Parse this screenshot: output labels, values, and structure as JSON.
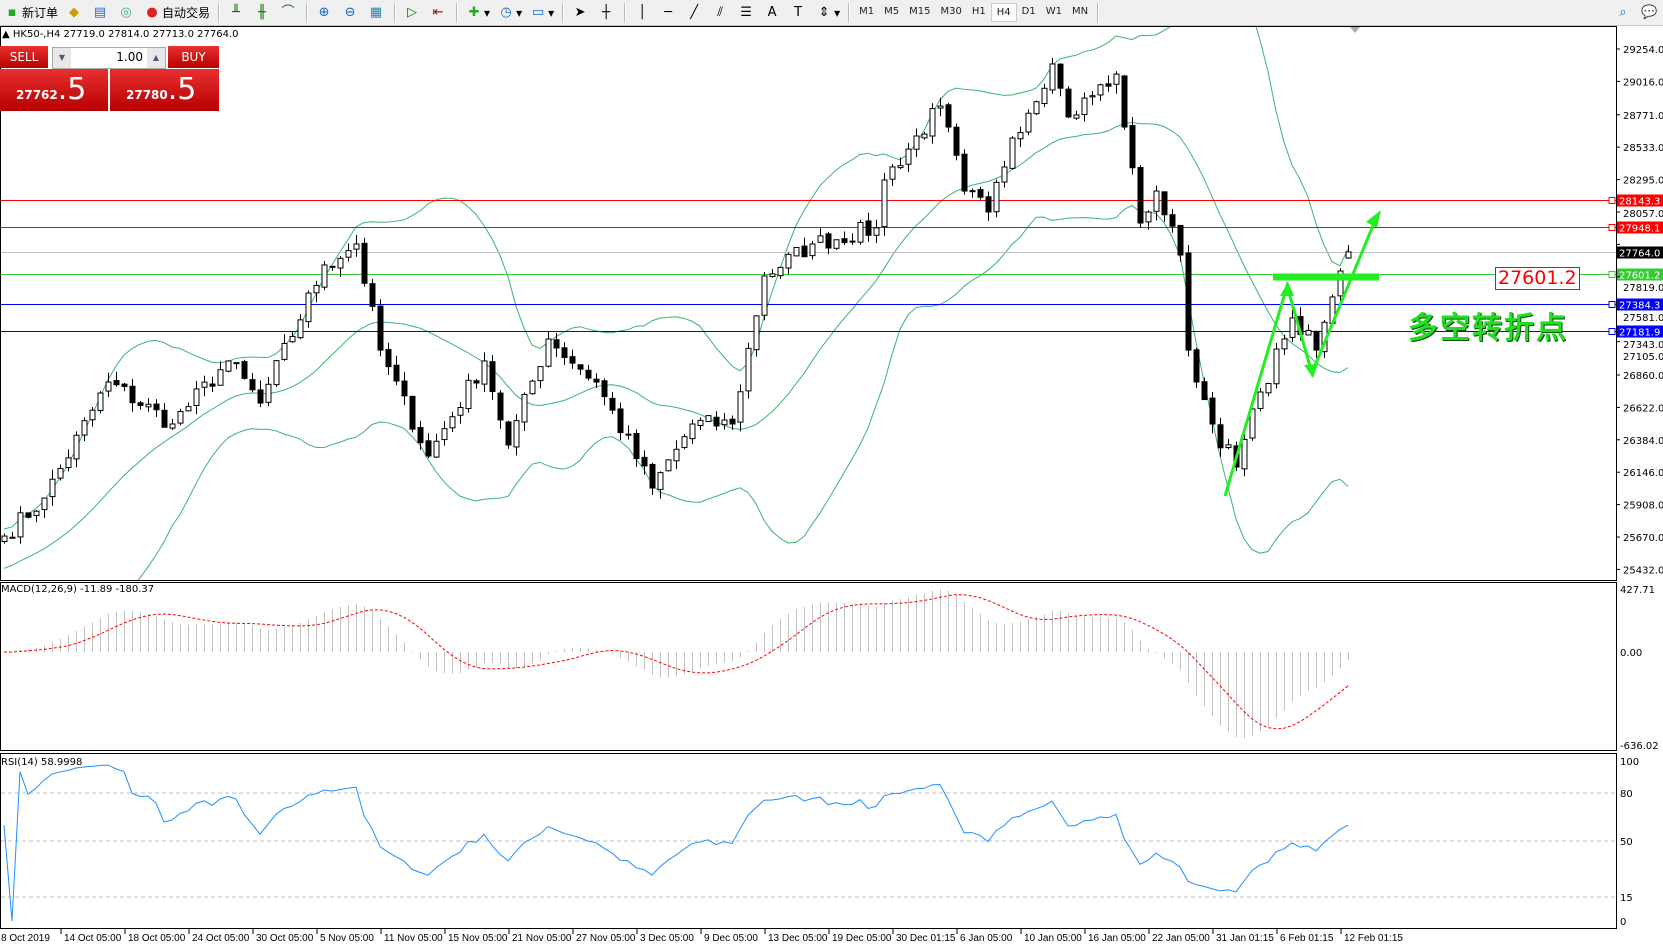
{
  "toolbar": {
    "new_order": "新订单",
    "auto_trading": "自动交易",
    "timeframes": [
      "M1",
      "M5",
      "M15",
      "M30",
      "H1",
      "H4",
      "D1",
      "W1",
      "MN"
    ],
    "active_timeframe": "H4"
  },
  "chart": {
    "symbol_info": "HK50-,H4  27719.0 27814.0 27713.0 27764.0",
    "last_bar": {
      "open": 27719.0,
      "high": 27814.0,
      "low": 27713.0,
      "close": 27764.0
    }
  },
  "trade_panel": {
    "sell_label": "SELL",
    "buy_label": "BUY",
    "lot": "1.00",
    "sell_price_main": "27762",
    "sell_price_frac": ".5",
    "buy_price_main": "27780",
    "buy_price_frac": ".5"
  },
  "price_axis": {
    "ticks": [
      "29254.0",
      "29016.0",
      "28771.0",
      "28533.0",
      "28295.0",
      "28057.0",
      "27819.0",
      "27581.0",
      "27343.0",
      "27105.0",
      "26860.0",
      "26622.0",
      "26384.0",
      "26146.0",
      "25908.0",
      "25670.0",
      "25432.0"
    ]
  },
  "hlines": [
    {
      "value": "28143.3",
      "color": "#ff0000"
    },
    {
      "value": "27948.1",
      "color": "#ff0000"
    },
    {
      "value": "27764.0",
      "color": "#000000",
      "line": "#c0c0c0"
    },
    {
      "value": "27601.2",
      "color": "#33cc33"
    },
    {
      "value": "27384.3",
      "color": "#0000ff"
    },
    {
      "value": "27181.9",
      "color": "#0000ff"
    }
  ],
  "annotations": {
    "level_label": "27601.2",
    "turning_point_text": "多空转折点",
    "arrow_color": "#22ee22"
  },
  "price_path": [
    {
      "bar": 0,
      "close": 25677
    },
    {
      "bar": 5,
      "close": 25956
    },
    {
      "bar": 13,
      "close": 26808
    },
    {
      "bar": 21,
      "close": 26500
    },
    {
      "bar": 28,
      "close": 26963
    },
    {
      "bar": 32,
      "close": 26654
    },
    {
      "bar": 40,
      "close": 27668
    },
    {
      "bar": 44,
      "close": 27822
    },
    {
      "bar": 47,
      "close": 27043
    },
    {
      "bar": 53,
      "close": 26265
    },
    {
      "bar": 60,
      "close": 26963
    },
    {
      "bar": 63,
      "close": 26346
    },
    {
      "bar": 68,
      "close": 27124
    },
    {
      "bar": 74,
      "close": 26808
    },
    {
      "bar": 81,
      "close": 26030
    },
    {
      "bar": 86,
      "close": 26500
    },
    {
      "bar": 91,
      "close": 26500
    },
    {
      "bar": 95,
      "close": 27587
    },
    {
      "bar": 101,
      "close": 27822
    },
    {
      "bar": 109,
      "close": 27940
    },
    {
      "bar": 110,
      "close": 28292
    },
    {
      "bar": 117,
      "close": 28835
    },
    {
      "bar": 120,
      "close": 28211
    },
    {
      "bar": 123,
      "close": 28057
    },
    {
      "bar": 126,
      "close": 28600
    },
    {
      "bar": 131,
      "close": 29144
    },
    {
      "bar": 133,
      "close": 28755
    },
    {
      "bar": 139,
      "close": 29070
    },
    {
      "bar": 140,
      "close": 28681
    },
    {
      "bar": 142,
      "close": 27976
    },
    {
      "bar": 144,
      "close": 28211
    },
    {
      "bar": 147,
      "close": 27741
    },
    {
      "bar": 148,
      "close": 27043
    },
    {
      "bar": 151,
      "close": 26500
    },
    {
      "bar": 154,
      "close": 26184
    },
    {
      "bar": 157,
      "close": 26735
    },
    {
      "bar": 160,
      "close": 27124
    },
    {
      "bar": 161,
      "close": 27279
    },
    {
      "bar": 164,
      "close": 27043
    },
    {
      "bar": 166,
      "close": 27433
    },
    {
      "bar": 168,
      "close": 27764
    }
  ],
  "macd": {
    "label": "MACD(12,26,9) -11.89 -180.37",
    "ticks": [
      "427.71",
      "0.00",
      "-636.02"
    ],
    "max": 427.71,
    "min": -636.02
  },
  "rsi": {
    "label": "RSI(14) 58.9998",
    "ticks": [
      "100",
      "80",
      "50",
      "15",
      "0"
    ]
  },
  "time_axis": {
    "labels": [
      "8 Oct 2019",
      "14 Oct 05:00",
      "18 Oct 05:00",
      "24 Oct 05:00",
      "30 Oct 05:00",
      "5 Nov 05:00",
      "11 Nov 05:00",
      "15 Nov 05:00",
      "21 Nov 05:00",
      "27 Nov 05:00",
      "3 Dec 05:00",
      "9 Dec 05:00",
      "13 Dec 05:00",
      "19 Dec 05:00",
      "30 Dec 01:15",
      "6 Jan 05:00",
      "10 Jan 05:00",
      "16 Jan 05:00",
      "22 Jan 05:00",
      "31 Jan 01:15",
      "6 Feb 01:15",
      "12 Feb 01:15"
    ]
  },
  "colors": {
    "bands": "#3cb371",
    "rsi": "#1e90ff",
    "macd_hist": "#c0c0c0",
    "macd_signal": "#ff0000"
  }
}
